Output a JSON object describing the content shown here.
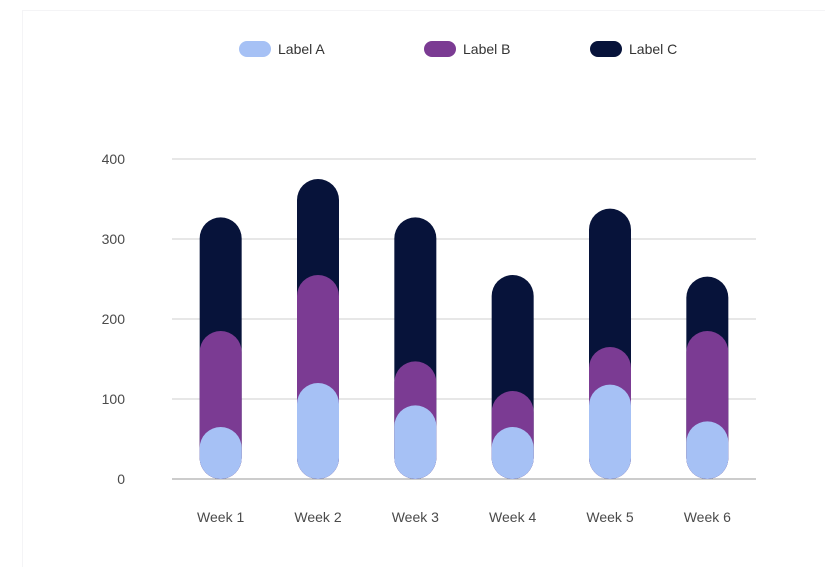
{
  "chart_data": {
    "type": "bar",
    "stacked": true,
    "categories": [
      "Week 1",
      "Week 2",
      "Week 3",
      "Week 4",
      "Week 5",
      "Week 6"
    ],
    "series": [
      {
        "name": "Label A",
        "color": "#a6c1f5",
        "values": [
          65,
          120,
          92,
          65,
          118,
          72
        ]
      },
      {
        "name": "Label B",
        "color": "#7b3b93",
        "values": [
          120,
          135,
          55,
          45,
          47,
          113
        ]
      },
      {
        "name": "Label C",
        "color": "#07133a",
        "values": [
          142,
          120,
          180,
          145,
          173,
          68
        ]
      }
    ],
    "ylim": [
      0,
      400
    ],
    "yticks": [
      0,
      100,
      200,
      300,
      400
    ],
    "grid": true,
    "legend_position": "top"
  }
}
